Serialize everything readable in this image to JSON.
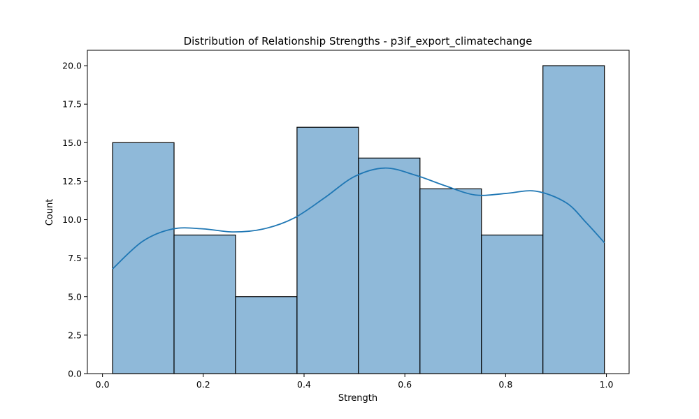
{
  "chart_data": {
    "type": "bar",
    "title": "Distribution of Relationship Strengths - p3if_export_climatechange",
    "xlabel": "Strength",
    "ylabel": "Count",
    "bins": [
      {
        "x0": 0.02,
        "x1": 0.142,
        "count": 15
      },
      {
        "x0": 0.142,
        "x1": 0.264,
        "count": 9
      },
      {
        "x0": 0.264,
        "x1": 0.386,
        "count": 5
      },
      {
        "x0": 0.386,
        "x1": 0.508,
        "count": 16
      },
      {
        "x0": 0.508,
        "x1": 0.63,
        "count": 14
      },
      {
        "x0": 0.63,
        "x1": 0.752,
        "count": 12
      },
      {
        "x0": 0.752,
        "x1": 0.874,
        "count": 9
      },
      {
        "x0": 0.874,
        "x1": 0.996,
        "count": 20
      }
    ],
    "kde": {
      "x": [
        0.02,
        0.08,
        0.14,
        0.2,
        0.26,
        0.32,
        0.38,
        0.44,
        0.5,
        0.56,
        0.62,
        0.68,
        0.74,
        0.8,
        0.86,
        0.92,
        0.96,
        0.996
      ],
      "y": [
        6.8,
        8.6,
        9.4,
        9.4,
        9.2,
        9.4,
        10.1,
        11.4,
        12.8,
        13.35,
        12.9,
        12.2,
        11.6,
        11.7,
        11.85,
        11.1,
        9.8,
        8.5
      ]
    },
    "xlim": [
      -0.03,
      1.045
    ],
    "ylim": [
      0,
      21
    ],
    "xticks": [
      0.0,
      0.2,
      0.4,
      0.6,
      0.8,
      1.0
    ],
    "xtick_labels": [
      "0.0",
      "0.2",
      "0.4",
      "0.6",
      "0.8",
      "1.0"
    ],
    "yticks": [
      0.0,
      2.5,
      5.0,
      7.5,
      10.0,
      12.5,
      15.0,
      17.5,
      20.0
    ],
    "ytick_labels": [
      "0.0",
      "2.5",
      "5.0",
      "7.5",
      "10.0",
      "12.5",
      "15.0",
      "17.5",
      "20.0"
    ],
    "grid": false,
    "colors": {
      "bar_fill": "#8fb9d9",
      "bar_edge": "#000000",
      "kde_line": "#1f77b4"
    }
  }
}
